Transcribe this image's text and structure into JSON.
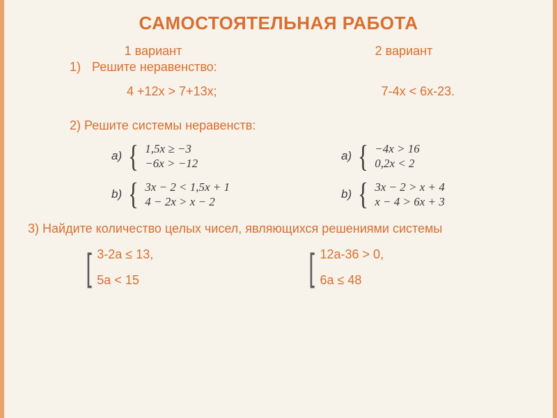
{
  "title": "САМОСТОЯТЕЛЬНАЯ РАБОТА",
  "variants": {
    "v1": "1 вариант",
    "v2": "2 вариант"
  },
  "task1": {
    "num": "1)",
    "label": "Решите неравенство:",
    "left": "4 +12х > 7+13х;",
    "right": "7-4х < 6х-23."
  },
  "task2": {
    "label": "2) Решите системы неравенств:",
    "col1": {
      "a_letter": "a)",
      "a_line1": "1,5x ≥ −3",
      "a_line2": "−6x > −12",
      "b_letter": "b)",
      "b_line1": "3x − 2 < 1,5x + 1",
      "b_line2": "4 − 2x > x − 2"
    },
    "col2": {
      "a_letter": "a)",
      "a_line1": "−4x > 16",
      "a_line2": "0,2x < 2",
      "b_letter": "b)",
      "b_line1": "3x − 2 > x + 4",
      "b_line2": "x − 4 > 6x + 3"
    }
  },
  "task3": {
    "label": "3) Найдите количество целых чисел, являющихся решениями системы",
    "col1": {
      "line1": "3-2а ≤ 13,",
      "line2": "5а < 15"
    },
    "col2": {
      "line1": "12а-36 > 0,",
      "line2": "6а ≤ 48"
    }
  },
  "colors": {
    "accent": "#d86f30",
    "text": "#3a3a3a",
    "bg": "#f7f2ea",
    "border": "#e8a26a"
  }
}
